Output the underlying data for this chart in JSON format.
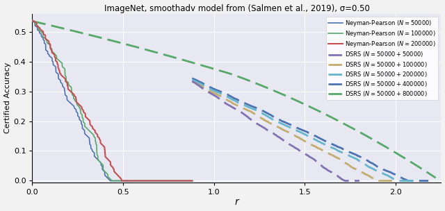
{
  "title": "ImageNet, smoothadv model from (Salmen et al., 2019), σ=0.50",
  "xlabel": "r",
  "ylabel": "Certified Accuracy",
  "xlim": [
    0.0,
    2.25
  ],
  "ylim": [
    -0.005,
    0.56
  ],
  "yticks": [
    0.0,
    0.1,
    0.2,
    0.3,
    0.4,
    0.5
  ],
  "xticks": [
    0.0,
    0.5,
    1.0,
    1.5,
    2.0
  ],
  "bg_color": "#e8e8f2",
  "fig_bg": "#f2f2f2",
  "np_color_50k": "#4c72b0",
  "np_color_100k": "#55a868",
  "np_color_200k": "#c44e52",
  "dsrs_color_50k_50k": "#8172b2",
  "dsrs_color_50k_100k": "#c4ac6e",
  "dsrs_color_50k_200k": "#64b5cd",
  "dsrs_color_50k_400k": "#4c72b0",
  "dsrs_color_50k_800k": "#55a868"
}
